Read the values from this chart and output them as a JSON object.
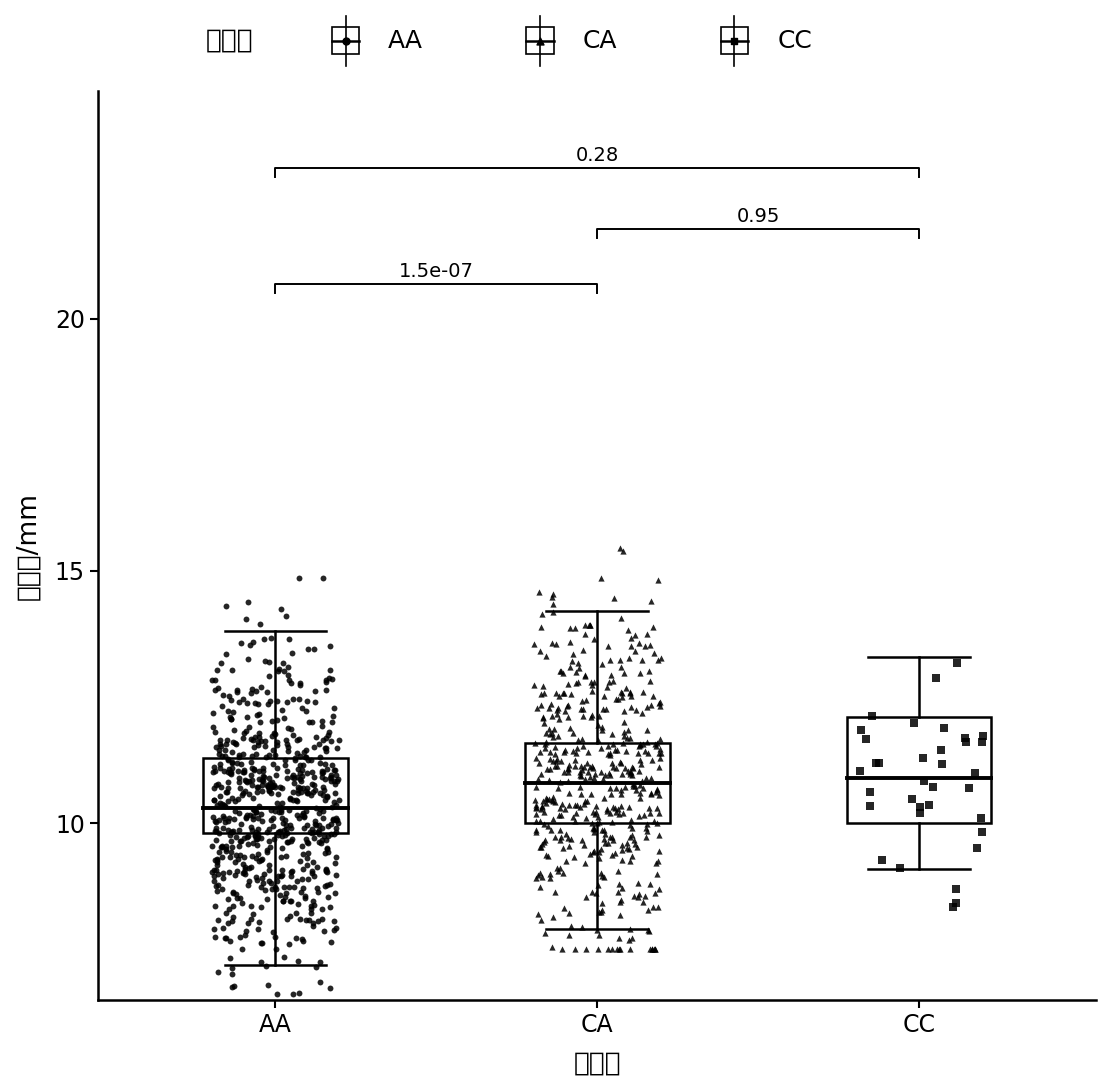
{
  "title_label": "基因型",
  "legend_labels": [
    "AA",
    "CA",
    "CC"
  ],
  "xlabel": "基因型",
  "ylabel": "背膀厚/mm",
  "categories": [
    "AA",
    "CA",
    "CC"
  ],
  "ylim": [
    6.5,
    24.5
  ],
  "yticks": [
    10,
    15,
    20
  ],
  "bg_color": "#ffffff",
  "aa_box": {
    "median": 10.3,
    "q1": 9.8,
    "q3": 11.3,
    "whisker_low": 7.2,
    "whisker_high": 13.8
  },
  "ca_box": {
    "median": 10.8,
    "q1": 10.0,
    "q3": 11.6,
    "whisker_low": 7.9,
    "whisker_high": 14.2
  },
  "cc_box": {
    "median": 10.9,
    "q1": 10.0,
    "q3": 12.1,
    "whisker_low": 9.1,
    "whisker_high": 13.3
  },
  "comparisons": [
    {
      "group1": 0,
      "group2": 1,
      "label": "1.5e-07",
      "y": 20.5
    },
    {
      "group1": 0,
      "group2": 2,
      "label": "0.28",
      "y": 22.8
    },
    {
      "group1": 1,
      "group2": 2,
      "label": "0.95",
      "y": 21.6
    }
  ],
  "n_aa": 700,
  "n_ca": 500,
  "n_cc": 35,
  "seeds": [
    42,
    123,
    999
  ]
}
